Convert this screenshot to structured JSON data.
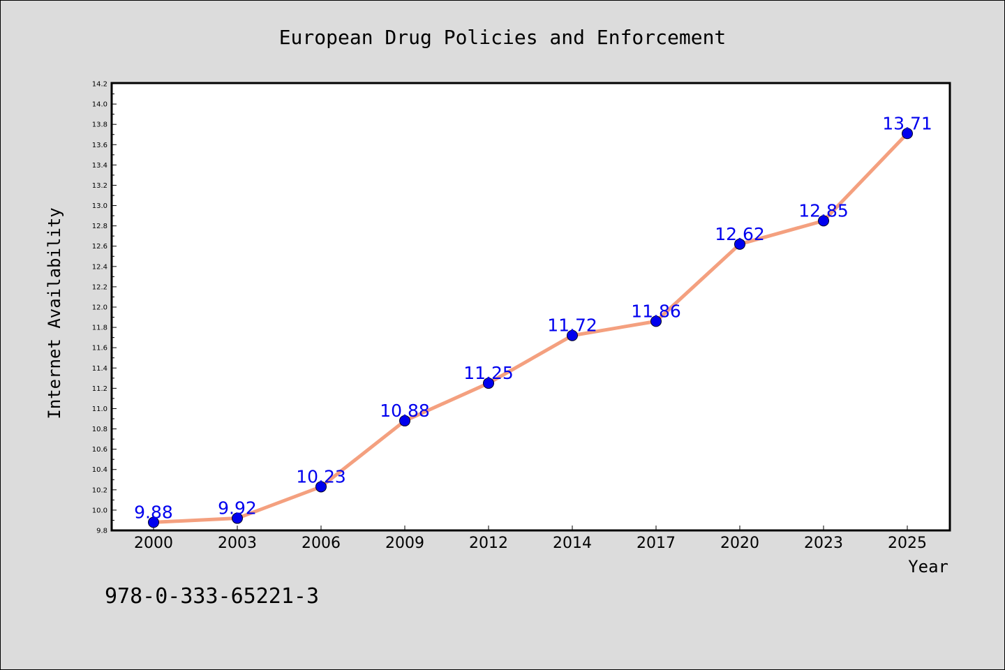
{
  "chart_data": {
    "type": "line",
    "title": "European Drug Policies and Enforcement",
    "xlabel": "Year",
    "ylabel": "Internet Availability",
    "categories": [
      "2000",
      "2003",
      "2006",
      "2009",
      "2012",
      "2014",
      "2017",
      "2020",
      "2023",
      "2025"
    ],
    "series": [
      {
        "values": [
          9.88,
          9.92,
          10.23,
          10.88,
          11.25,
          11.72,
          11.86,
          12.62,
          12.85,
          13.71
        ]
      }
    ],
    "data_labels": [
      "9.88",
      "9.92",
      "10.23",
      "10.88",
      "11.25",
      "11.72",
      "11.86",
      "12.62",
      "12.85",
      "13.71"
    ],
    "ylim": [
      9.8,
      14.2
    ],
    "yticks": [
      "9.8",
      "10.0",
      "10.2",
      "10.4",
      "10.6",
      "10.8",
      "11.0",
      "11.2",
      "11.4",
      "11.6",
      "11.8",
      "12.0",
      "12.2",
      "12.4",
      "12.6",
      "12.8",
      "13.0",
      "13.2",
      "13.4",
      "13.6",
      "13.8",
      "14.0",
      "14.2"
    ],
    "grid": false,
    "legend": "none",
    "colors": {
      "line": "#f4a07f",
      "marker": "#0000ee",
      "label": "#0000ee",
      "page_bg": "#dcdcdc",
      "plot_bg": "#ffffff"
    }
  },
  "footer": {
    "code": "978-0-333-65221-3"
  }
}
